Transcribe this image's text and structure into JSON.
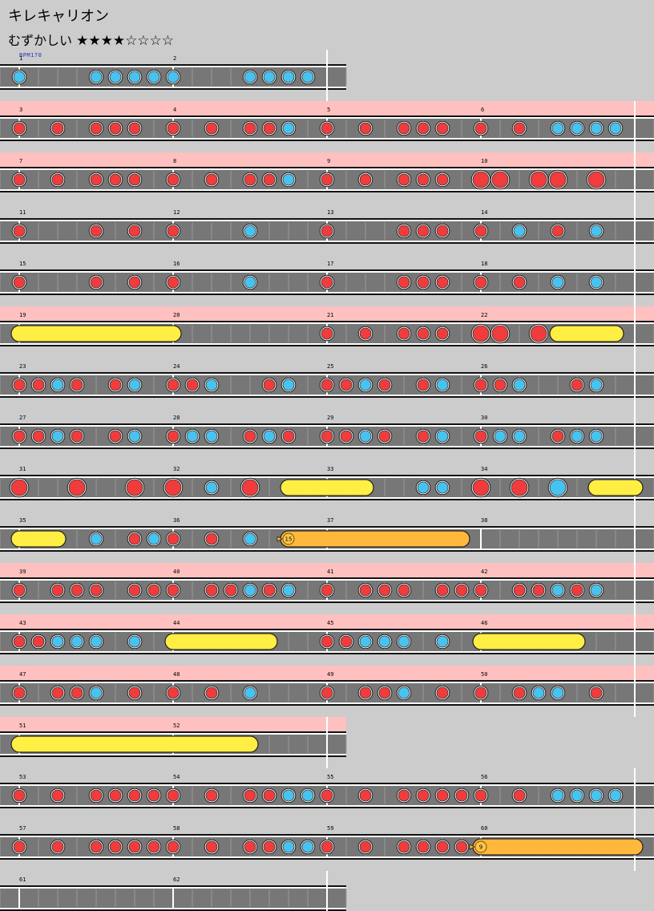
{
  "song": {
    "title": "キレキャリオン",
    "difficulty_label": "むずかしい",
    "stars_display": "★★★★☆☆☆☆",
    "level": 4,
    "max_level": 8,
    "bpm_label": "BPM170"
  },
  "colors": {
    "background": "#cccccc",
    "lane": "#777777",
    "gogo_band": "#ffc0c0",
    "don": "#f03c3c",
    "ka": "#48c3f0",
    "drumroll": "#ffee44",
    "balloon": "#ffb83c"
  },
  "chart_data": {
    "type": "table",
    "measures_per_row": 4,
    "subdivisions_per_measure": 8,
    "rows": [
      {
        "measures": [
          1,
          2
        ],
        "gogo": false,
        "partial": true
      },
      {
        "measures": [
          3,
          4,
          5,
          6
        ],
        "gogo": true
      },
      {
        "measures": [
          7,
          8,
          9,
          10
        ],
        "gogo": true
      },
      {
        "measures": [
          11,
          12,
          13,
          14
        ],
        "gogo": false
      },
      {
        "measures": [
          15,
          16,
          17,
          18
        ],
        "gogo": false
      },
      {
        "measures": [
          19,
          20,
          21,
          22
        ],
        "gogo": true
      },
      {
        "measures": [
          23,
          24,
          25,
          26
        ],
        "gogo": false
      },
      {
        "measures": [
          27,
          28,
          29,
          30
        ],
        "gogo": false
      },
      {
        "measures": [
          31,
          32,
          33,
          34
        ],
        "gogo": false
      },
      {
        "measures": [
          35,
          36,
          37,
          38
        ],
        "gogo": false
      },
      {
        "measures": [
          39,
          40,
          41,
          42
        ],
        "gogo": true
      },
      {
        "measures": [
          43,
          44,
          45,
          46
        ],
        "gogo": true
      },
      {
        "measures": [
          47,
          48,
          49,
          50
        ],
        "gogo": true
      },
      {
        "measures": [
          51,
          52
        ],
        "gogo": true,
        "partial": true
      },
      {
        "measures": [
          53,
          54,
          55,
          56
        ],
        "gogo": false
      },
      {
        "measures": [
          57,
          58,
          59,
          60
        ],
        "gogo": false
      },
      {
        "measures": [
          61,
          62
        ],
        "gogo": false,
        "partial": true
      }
    ],
    "notes": [
      {
        "r": 0,
        "p": 0,
        "t": "k"
      },
      {
        "r": 0,
        "p": 4,
        "t": "k"
      },
      {
        "r": 0,
        "p": 5,
        "t": "k"
      },
      {
        "r": 0,
        "p": 6,
        "t": "k"
      },
      {
        "r": 0,
        "p": 7,
        "t": "k"
      },
      {
        "r": 0,
        "p": 8,
        "t": "k"
      },
      {
        "r": 0,
        "p": 12,
        "t": "k"
      },
      {
        "r": 0,
        "p": 13,
        "t": "k"
      },
      {
        "r": 0,
        "p": 14,
        "t": "k"
      },
      {
        "r": 0,
        "p": 15,
        "t": "k"
      },
      {
        "r": 1,
        "p": 0,
        "t": "d"
      },
      {
        "r": 1,
        "p": 2,
        "t": "d"
      },
      {
        "r": 1,
        "p": 4,
        "t": "d"
      },
      {
        "r": 1,
        "p": 5,
        "t": "d"
      },
      {
        "r": 1,
        "p": 6,
        "t": "d"
      },
      {
        "r": 1,
        "p": 8,
        "t": "d"
      },
      {
        "r": 1,
        "p": 10,
        "t": "d"
      },
      {
        "r": 1,
        "p": 12,
        "t": "d"
      },
      {
        "r": 1,
        "p": 13,
        "t": "d"
      },
      {
        "r": 1,
        "p": 14,
        "t": "k"
      },
      {
        "r": 1,
        "p": 16,
        "t": "d"
      },
      {
        "r": 1,
        "p": 18,
        "t": "d"
      },
      {
        "r": 1,
        "p": 20,
        "t": "d"
      },
      {
        "r": 1,
        "p": 21,
        "t": "d"
      },
      {
        "r": 1,
        "p": 22,
        "t": "d"
      },
      {
        "r": 1,
        "p": 24,
        "t": "d"
      },
      {
        "r": 1,
        "p": 26,
        "t": "d"
      },
      {
        "r": 1,
        "p": 28,
        "t": "k"
      },
      {
        "r": 1,
        "p": 29,
        "t": "k"
      },
      {
        "r": 1,
        "p": 30,
        "t": "k"
      },
      {
        "r": 1,
        "p": 31,
        "t": "k"
      },
      {
        "r": 2,
        "p": 0,
        "t": "d"
      },
      {
        "r": 2,
        "p": 2,
        "t": "d"
      },
      {
        "r": 2,
        "p": 4,
        "t": "d"
      },
      {
        "r": 2,
        "p": 5,
        "t": "d"
      },
      {
        "r": 2,
        "p": 6,
        "t": "d"
      },
      {
        "r": 2,
        "p": 8,
        "t": "d"
      },
      {
        "r": 2,
        "p": 10,
        "t": "d"
      },
      {
        "r": 2,
        "p": 12,
        "t": "d"
      },
      {
        "r": 2,
        "p": 13,
        "t": "d"
      },
      {
        "r": 2,
        "p": 14,
        "t": "k"
      },
      {
        "r": 2,
        "p": 16,
        "t": "d"
      },
      {
        "r": 2,
        "p": 18,
        "t": "d"
      },
      {
        "r": 2,
        "p": 20,
        "t": "d"
      },
      {
        "r": 2,
        "p": 21,
        "t": "d"
      },
      {
        "r": 2,
        "p": 22,
        "t": "d"
      },
      {
        "r": 2,
        "p": 24,
        "t": "D"
      },
      {
        "r": 2,
        "p": 25,
        "t": "D"
      },
      {
        "r": 2,
        "p": 27,
        "t": "D"
      },
      {
        "r": 2,
        "p": 28,
        "t": "D"
      },
      {
        "r": 2,
        "p": 30,
        "t": "D"
      },
      {
        "r": 3,
        "p": 0,
        "t": "d"
      },
      {
        "r": 3,
        "p": 4,
        "t": "d"
      },
      {
        "r": 3,
        "p": 6,
        "t": "d"
      },
      {
        "r": 3,
        "p": 8,
        "t": "d"
      },
      {
        "r": 3,
        "p": 12,
        "t": "k"
      },
      {
        "r": 3,
        "p": 16,
        "t": "d"
      },
      {
        "r": 3,
        "p": 20,
        "t": "d"
      },
      {
        "r": 3,
        "p": 21,
        "t": "d"
      },
      {
        "r": 3,
        "p": 22,
        "t": "d"
      },
      {
        "r": 3,
        "p": 24,
        "t": "d"
      },
      {
        "r": 3,
        "p": 26,
        "t": "k"
      },
      {
        "r": 3,
        "p": 28,
        "t": "d"
      },
      {
        "r": 3,
        "p": 30,
        "t": "k"
      },
      {
        "r": 4,
        "p": 0,
        "t": "d"
      },
      {
        "r": 4,
        "p": 4,
        "t": "d"
      },
      {
        "r": 4,
        "p": 6,
        "t": "d"
      },
      {
        "r": 4,
        "p": 8,
        "t": "d"
      },
      {
        "r": 4,
        "p": 12,
        "t": "k"
      },
      {
        "r": 4,
        "p": 16,
        "t": "d"
      },
      {
        "r": 4,
        "p": 20,
        "t": "d"
      },
      {
        "r": 4,
        "p": 21,
        "t": "d"
      },
      {
        "r": 4,
        "p": 22,
        "t": "d"
      },
      {
        "r": 4,
        "p": 24,
        "t": "d"
      },
      {
        "r": 4,
        "p": 26,
        "t": "d"
      },
      {
        "r": 4,
        "p": 28,
        "t": "k"
      },
      {
        "r": 4,
        "p": 30,
        "t": "k"
      },
      {
        "r": 5,
        "t": "roll",
        "s": 0,
        "e": 8
      },
      {
        "r": 5,
        "p": 16,
        "t": "d"
      },
      {
        "r": 5,
        "p": 18,
        "t": "d"
      },
      {
        "r": 5,
        "p": 20,
        "t": "d"
      },
      {
        "r": 5,
        "p": 21,
        "t": "d"
      },
      {
        "r": 5,
        "p": 22,
        "t": "d"
      },
      {
        "r": 5,
        "p": 24,
        "t": "D"
      },
      {
        "r": 5,
        "p": 25,
        "t": "D"
      },
      {
        "r": 5,
        "p": 27,
        "t": "D"
      },
      {
        "r": 5,
        "t": "roll",
        "s": 28,
        "e": 31
      },
      {
        "r": 6,
        "p": 0,
        "t": "d"
      },
      {
        "r": 6,
        "p": 1,
        "t": "d"
      },
      {
        "r": 6,
        "p": 2,
        "t": "k"
      },
      {
        "r": 6,
        "p": 3,
        "t": "d"
      },
      {
        "r": 6,
        "p": 5,
        "t": "d"
      },
      {
        "r": 6,
        "p": 6,
        "t": "k"
      },
      {
        "r": 6,
        "p": 8,
        "t": "d"
      },
      {
        "r": 6,
        "p": 9,
        "t": "d"
      },
      {
        "r": 6,
        "p": 10,
        "t": "k"
      },
      {
        "r": 6,
        "p": 13,
        "t": "d"
      },
      {
        "r": 6,
        "p": 14,
        "t": "k"
      },
      {
        "r": 6,
        "p": 16,
        "t": "d"
      },
      {
        "r": 6,
        "p": 17,
        "t": "d"
      },
      {
        "r": 6,
        "p": 18,
        "t": "k"
      },
      {
        "r": 6,
        "p": 19,
        "t": "d"
      },
      {
        "r": 6,
        "p": 21,
        "t": "d"
      },
      {
        "r": 6,
        "p": 22,
        "t": "k"
      },
      {
        "r": 6,
        "p": 24,
        "t": "d"
      },
      {
        "r": 6,
        "p": 25,
        "t": "d"
      },
      {
        "r": 6,
        "p": 26,
        "t": "k"
      },
      {
        "r": 6,
        "p": 29,
        "t": "d"
      },
      {
        "r": 6,
        "p": 30,
        "t": "k"
      },
      {
        "r": 7,
        "p": 0,
        "t": "d"
      },
      {
        "r": 7,
        "p": 1,
        "t": "d"
      },
      {
        "r": 7,
        "p": 2,
        "t": "k"
      },
      {
        "r": 7,
        "p": 3,
        "t": "d"
      },
      {
        "r": 7,
        "p": 5,
        "t": "d"
      },
      {
        "r": 7,
        "p": 6,
        "t": "k"
      },
      {
        "r": 7,
        "p": 8,
        "t": "d"
      },
      {
        "r": 7,
        "p": 9,
        "t": "k"
      },
      {
        "r": 7,
        "p": 10,
        "t": "k"
      },
      {
        "r": 7,
        "p": 12,
        "t": "d"
      },
      {
        "r": 7,
        "p": 13,
        "t": "k"
      },
      {
        "r": 7,
        "p": 14,
        "t": "d"
      },
      {
        "r": 7,
        "p": 16,
        "t": "d"
      },
      {
        "r": 7,
        "p": 17,
        "t": "d"
      },
      {
        "r": 7,
        "p": 18,
        "t": "k"
      },
      {
        "r": 7,
        "p": 19,
        "t": "d"
      },
      {
        "r": 7,
        "p": 21,
        "t": "d"
      },
      {
        "r": 7,
        "p": 22,
        "t": "k"
      },
      {
        "r": 7,
        "p": 24,
        "t": "d"
      },
      {
        "r": 7,
        "p": 25,
        "t": "k"
      },
      {
        "r": 7,
        "p": 26,
        "t": "k"
      },
      {
        "r": 7,
        "p": 28,
        "t": "d"
      },
      {
        "r": 7,
        "p": 29,
        "t": "k"
      },
      {
        "r": 7,
        "p": 30,
        "t": "k"
      },
      {
        "r": 8,
        "p": 0,
        "t": "D"
      },
      {
        "r": 8,
        "p": 3,
        "t": "D"
      },
      {
        "r": 8,
        "p": 6,
        "t": "D"
      },
      {
        "r": 8,
        "p": 8,
        "t": "D"
      },
      {
        "r": 8,
        "p": 10,
        "t": "k"
      },
      {
        "r": 8,
        "p": 12,
        "t": "D"
      },
      {
        "r": 8,
        "t": "roll",
        "s": 14,
        "e": 18
      },
      {
        "r": 8,
        "p": 21,
        "t": "k"
      },
      {
        "r": 8,
        "p": 22,
        "t": "k"
      },
      {
        "r": 8,
        "p": 24,
        "t": "D"
      },
      {
        "r": 8,
        "p": 26,
        "t": "D"
      },
      {
        "r": 8,
        "p": 28,
        "t": "K"
      },
      {
        "r": 8,
        "t": "roll",
        "s": 30,
        "e": 32
      },
      {
        "r": 9,
        "t": "roll",
        "s": 0,
        "e": 2
      },
      {
        "r": 9,
        "p": 4,
        "t": "k"
      },
      {
        "r": 9,
        "p": 6,
        "t": "d"
      },
      {
        "r": 9,
        "p": 7,
        "t": "k"
      },
      {
        "r": 9,
        "p": 8,
        "t": "d"
      },
      {
        "r": 9,
        "p": 10,
        "t": "d"
      },
      {
        "r": 9,
        "p": 12,
        "t": "k"
      },
      {
        "r": 9,
        "t": "balloon",
        "s": 14,
        "e": 23,
        "n": "15"
      },
      {
        "r": 10,
        "p": 0,
        "t": "d"
      },
      {
        "r": 10,
        "p": 2,
        "t": "d"
      },
      {
        "r": 10,
        "p": 3,
        "t": "d"
      },
      {
        "r": 10,
        "p": 4,
        "t": "d"
      },
      {
        "r": 10,
        "p": 6,
        "t": "d"
      },
      {
        "r": 10,
        "p": 7,
        "t": "d"
      },
      {
        "r": 10,
        "p": 8,
        "t": "d"
      },
      {
        "r": 10,
        "p": 10,
        "t": "d"
      },
      {
        "r": 10,
        "p": 11,
        "t": "d"
      },
      {
        "r": 10,
        "p": 12,
        "t": "k"
      },
      {
        "r": 10,
        "p": 13,
        "t": "d"
      },
      {
        "r": 10,
        "p": 14,
        "t": "k"
      },
      {
        "r": 10,
        "p": 16,
        "t": "d"
      },
      {
        "r": 10,
        "p": 18,
        "t": "d"
      },
      {
        "r": 10,
        "p": 19,
        "t": "d"
      },
      {
        "r": 10,
        "p": 20,
        "t": "d"
      },
      {
        "r": 10,
        "p": 22,
        "t": "d"
      },
      {
        "r": 10,
        "p": 23,
        "t": "d"
      },
      {
        "r": 10,
        "p": 24,
        "t": "d"
      },
      {
        "r": 10,
        "p": 26,
        "t": "d"
      },
      {
        "r": 10,
        "p": 27,
        "t": "d"
      },
      {
        "r": 10,
        "p": 28,
        "t": "k"
      },
      {
        "r": 10,
        "p": 29,
        "t": "d"
      },
      {
        "r": 10,
        "p": 30,
        "t": "k"
      },
      {
        "r": 11,
        "p": 0,
        "t": "d"
      },
      {
        "r": 11,
        "p": 1,
        "t": "d"
      },
      {
        "r": 11,
        "p": 2,
        "t": "k"
      },
      {
        "r": 11,
        "p": 3,
        "t": "k"
      },
      {
        "r": 11,
        "p": 4,
        "t": "k"
      },
      {
        "r": 11,
        "p": 6,
        "t": "k"
      },
      {
        "r": 11,
        "t": "roll",
        "s": 8,
        "e": 13
      },
      {
        "r": 11,
        "p": 16,
        "t": "d"
      },
      {
        "r": 11,
        "p": 17,
        "t": "d"
      },
      {
        "r": 11,
        "p": 18,
        "t": "k"
      },
      {
        "r": 11,
        "p": 19,
        "t": "k"
      },
      {
        "r": 11,
        "p": 20,
        "t": "k"
      },
      {
        "r": 11,
        "p": 22,
        "t": "k"
      },
      {
        "r": 11,
        "t": "roll",
        "s": 24,
        "e": 29
      },
      {
        "r": 12,
        "p": 0,
        "t": "d"
      },
      {
        "r": 12,
        "p": 2,
        "t": "d"
      },
      {
        "r": 12,
        "p": 3,
        "t": "d"
      },
      {
        "r": 12,
        "p": 4,
        "t": "k"
      },
      {
        "r": 12,
        "p": 6,
        "t": "d"
      },
      {
        "r": 12,
        "p": 8,
        "t": "d"
      },
      {
        "r": 12,
        "p": 10,
        "t": "d"
      },
      {
        "r": 12,
        "p": 12,
        "t": "k"
      },
      {
        "r": 12,
        "p": 16,
        "t": "d"
      },
      {
        "r": 12,
        "p": 18,
        "t": "d"
      },
      {
        "r": 12,
        "p": 19,
        "t": "d"
      },
      {
        "r": 12,
        "p": 20,
        "t": "k"
      },
      {
        "r": 12,
        "p": 22,
        "t": "d"
      },
      {
        "r": 12,
        "p": 24,
        "t": "d"
      },
      {
        "r": 12,
        "p": 26,
        "t": "d"
      },
      {
        "r": 12,
        "p": 27,
        "t": "k"
      },
      {
        "r": 12,
        "p": 28,
        "t": "k"
      },
      {
        "r": 12,
        "p": 30,
        "t": "d"
      },
      {
        "r": 13,
        "t": "roll",
        "s": 0,
        "e": 12
      },
      {
        "r": 14,
        "p": 0,
        "t": "d"
      },
      {
        "r": 14,
        "p": 2,
        "t": "d"
      },
      {
        "r": 14,
        "p": 4,
        "t": "d"
      },
      {
        "r": 14,
        "p": 5,
        "t": "d"
      },
      {
        "r": 14,
        "p": 6,
        "t": "d"
      },
      {
        "r": 14,
        "p": 7,
        "t": "d"
      },
      {
        "r": 14,
        "p": 8,
        "t": "d"
      },
      {
        "r": 14,
        "p": 10,
        "t": "d"
      },
      {
        "r": 14,
        "p": 12,
        "t": "d"
      },
      {
        "r": 14,
        "p": 13,
        "t": "d"
      },
      {
        "r": 14,
        "p": 14,
        "t": "k"
      },
      {
        "r": 14,
        "p": 15,
        "t": "k"
      },
      {
        "r": 14,
        "p": 16,
        "t": "d"
      },
      {
        "r": 14,
        "p": 18,
        "t": "d"
      },
      {
        "r": 14,
        "p": 20,
        "t": "d"
      },
      {
        "r": 14,
        "p": 21,
        "t": "d"
      },
      {
        "r": 14,
        "p": 22,
        "t": "d"
      },
      {
        "r": 14,
        "p": 23,
        "t": "d"
      },
      {
        "r": 14,
        "p": 24,
        "t": "d"
      },
      {
        "r": 14,
        "p": 26,
        "t": "d"
      },
      {
        "r": 14,
        "p": 28,
        "t": "k"
      },
      {
        "r": 14,
        "p": 29,
        "t": "k"
      },
      {
        "r": 14,
        "p": 30,
        "t": "k"
      },
      {
        "r": 14,
        "p": 31,
        "t": "k"
      },
      {
        "r": 15,
        "p": 0,
        "t": "d"
      },
      {
        "r": 15,
        "p": 2,
        "t": "d"
      },
      {
        "r": 15,
        "p": 4,
        "t": "d"
      },
      {
        "r": 15,
        "p": 5,
        "t": "d"
      },
      {
        "r": 15,
        "p": 6,
        "t": "d"
      },
      {
        "r": 15,
        "p": 7,
        "t": "d"
      },
      {
        "r": 15,
        "p": 8,
        "t": "d"
      },
      {
        "r": 15,
        "p": 10,
        "t": "d"
      },
      {
        "r": 15,
        "p": 12,
        "t": "d"
      },
      {
        "r": 15,
        "p": 13,
        "t": "d"
      },
      {
        "r": 15,
        "p": 14,
        "t": "k"
      },
      {
        "r": 15,
        "p": 15,
        "t": "k"
      },
      {
        "r": 15,
        "p": 16,
        "t": "d"
      },
      {
        "r": 15,
        "p": 18,
        "t": "d"
      },
      {
        "r": 15,
        "p": 20,
        "t": "d"
      },
      {
        "r": 15,
        "p": 21,
        "t": "d"
      },
      {
        "r": 15,
        "p": 22,
        "t": "d"
      },
      {
        "r": 15,
        "p": 23,
        "t": "d"
      },
      {
        "r": 15,
        "t": "balloon",
        "s": 24,
        "e": 32,
        "n": "9"
      }
    ]
  }
}
